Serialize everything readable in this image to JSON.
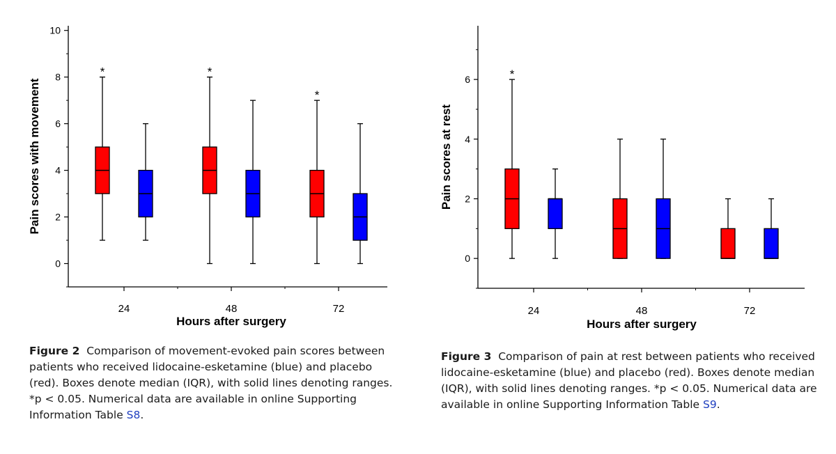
{
  "chart_data": [
    {
      "type": "box",
      "ylabel": "Pain scores with movement",
      "xlabel": "Hours after surgery",
      "categories": [
        "24",
        "48",
        "72"
      ],
      "ylim": [
        -1,
        10.2
      ],
      "yticks": [
        0,
        2,
        4,
        6,
        8,
        10
      ],
      "colors": {
        "placebo": "#ff0000",
        "lidocaine-esketamine": "#0000ff"
      },
      "series": [
        {
          "key": "placebo",
          "color": "#ff0000",
          "boxes": [
            {
              "min": 1,
              "q1": 3,
              "median": 4,
              "q3": 5,
              "max": 8,
              "star": "*"
            },
            {
              "min": 0,
              "q1": 3,
              "median": 4,
              "q3": 5,
              "max": 8,
              "star": "*"
            },
            {
              "min": 0,
              "q1": 2,
              "median": 3,
              "q3": 4,
              "max": 7,
              "star": "*"
            }
          ]
        },
        {
          "key": "lidocaine-esketamine",
          "color": "#0000ff",
          "boxes": [
            {
              "min": 1,
              "q1": 2,
              "median": 3,
              "q3": 4,
              "max": 6,
              "star": ""
            },
            {
              "min": 0,
              "q1": 2,
              "median": 3,
              "q3": 4,
              "max": 7,
              "star": ""
            },
            {
              "min": 0,
              "q1": 1,
              "median": 2,
              "q3": 3,
              "max": 6,
              "star": ""
            }
          ]
        }
      ]
    },
    {
      "type": "box",
      "ylabel": "Pain scores at rest",
      "xlabel": "Hours after surgery",
      "categories": [
        "24",
        "48",
        "72"
      ],
      "ylim": [
        -1,
        7.8
      ],
      "yticks": [
        0,
        2,
        4,
        6
      ],
      "colors": {
        "placebo": "#ff0000",
        "lidocaine-esketamine": "#0000ff"
      },
      "series": [
        {
          "key": "placebo",
          "color": "#ff0000",
          "boxes": [
            {
              "min": 0,
              "q1": 1,
              "median": 2,
              "q3": 3,
              "max": 6,
              "star": "*"
            },
            {
              "min": 0,
              "q1": 0,
              "median": 1,
              "q3": 2,
              "max": 4,
              "star": ""
            },
            {
              "min": 0,
              "q1": 0,
              "median": 0,
              "q3": 1,
              "max": 2,
              "star": ""
            }
          ]
        },
        {
          "key": "lidocaine-esketamine",
          "color": "#0000ff",
          "boxes": [
            {
              "min": 0,
              "q1": 1,
              "median": 2,
              "q3": 2,
              "max": 3,
              "star": ""
            },
            {
              "min": 0,
              "q1": 0,
              "median": 1,
              "q3": 2,
              "max": 4,
              "star": ""
            },
            {
              "min": 0,
              "q1": 0,
              "median": 0,
              "q3": 1,
              "max": 2,
              "star": ""
            }
          ]
        }
      ]
    }
  ],
  "captions": [
    {
      "label": "Figure 2",
      "text": "Comparison of movement-evoked pain scores between patients who received lidocaine-esketamine (blue) and placebo (red). Boxes denote median (IQR), with solid lines denoting ranges. *p < 0.05. Numerical data are available in online Supporting Information Table ",
      "ref": "S8",
      "end": "."
    },
    {
      "label": "Figure 3",
      "text": "Comparison of pain at rest between patients who received lidocaine-esketamine (blue) and placebo (red). Boxes denote median (IQR), with solid lines denoting ranges. *p < 0.05. Numerical data are available in online Supporting Information Table ",
      "ref": "S9",
      "end": "."
    }
  ]
}
